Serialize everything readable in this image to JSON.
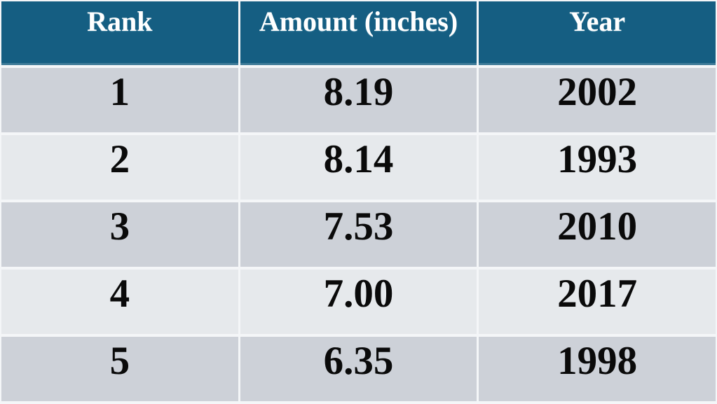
{
  "chart_data": {
    "type": "table",
    "title": "",
    "columns": [
      "Rank",
      "Amount (inches)",
      "Year"
    ],
    "column_keys": [
      "rank",
      "amount_inches",
      "year"
    ],
    "rows": [
      [
        "1",
        "8.19",
        "2002"
      ],
      [
        "2",
        "8.14",
        "1993"
      ],
      [
        "3",
        "7.53",
        "2010"
      ],
      [
        "4",
        "7.00",
        "2017"
      ],
      [
        "5",
        "6.35",
        "1998"
      ]
    ]
  },
  "colors": {
    "header_bg": "#155e82",
    "header_text": "#ffffff",
    "row_dark": "#cdd1d8",
    "row_light": "#e6e9ec",
    "grid": "#f4f6f8",
    "body_text": "#0a0a0a"
  }
}
